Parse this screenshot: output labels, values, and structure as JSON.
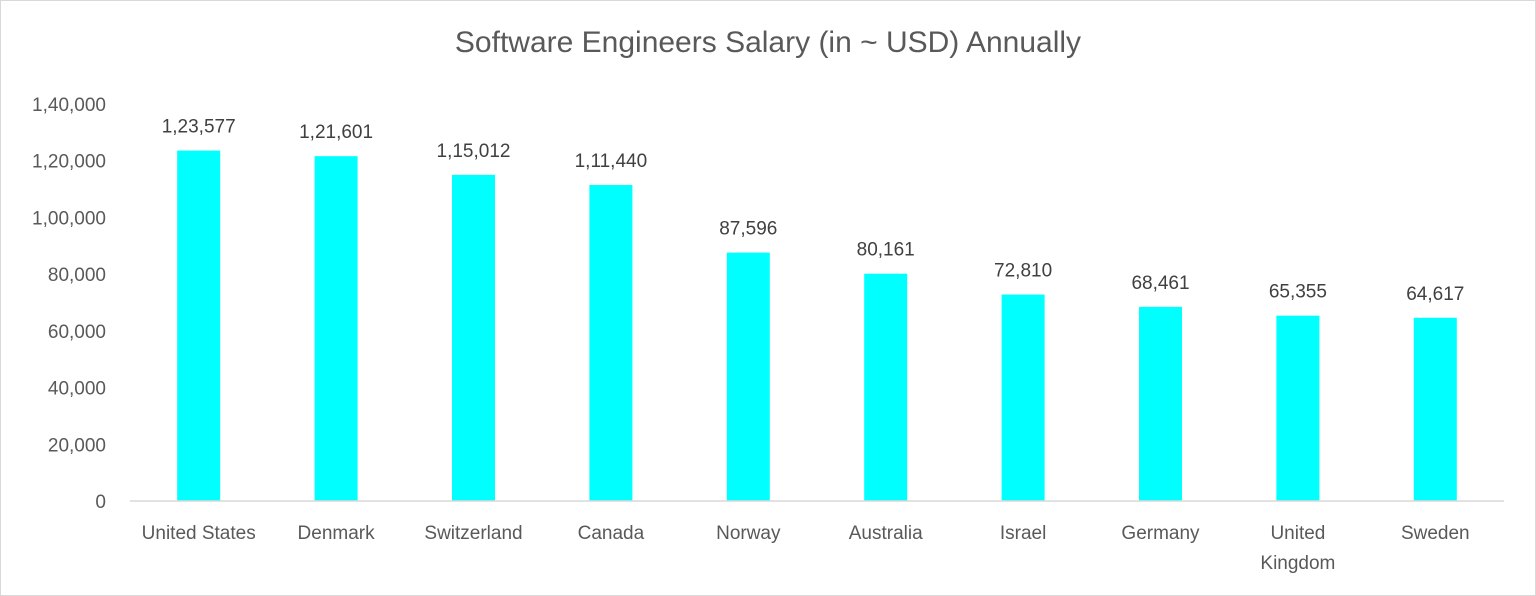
{
  "chart_data": {
    "type": "bar",
    "title": "Software Engineers Salary (in ~ USD) Annually",
    "xlabel": "",
    "ylabel": "",
    "ylim": [
      0,
      140000
    ],
    "grid": false,
    "legend": "none",
    "bar_color": "#00ffff",
    "categories": [
      "United States",
      "Denmark",
      "Switzerland",
      "Canada",
      "Norway",
      "Australia",
      "Israel",
      "Germany",
      "United Kingdom",
      "Sweden"
    ],
    "category_lines": [
      [
        "United States"
      ],
      [
        "Denmark"
      ],
      [
        "Switzerland"
      ],
      [
        "Canada"
      ],
      [
        "Norway"
      ],
      [
        "Australia"
      ],
      [
        "Israel"
      ],
      [
        "Germany"
      ],
      [
        "United",
        "Kingdom"
      ],
      [
        "Sweden"
      ]
    ],
    "values": [
      123577,
      121601,
      115012,
      111440,
      87596,
      80161,
      72810,
      68461,
      65355,
      64617
    ],
    "data_labels": [
      "1,23,577",
      "1,21,601",
      "1,15,012",
      "1,11,440",
      "87,596",
      "80,161",
      "72,810",
      "68,461",
      "65,355",
      "64,617"
    ],
    "yticks": [
      0,
      20000,
      40000,
      60000,
      80000,
      100000,
      120000,
      140000
    ],
    "ytick_labels": [
      "0",
      "20,000",
      "40,000",
      "60,000",
      "80,000",
      "1,00,000",
      "1,20,000",
      "1,40,000"
    ]
  }
}
